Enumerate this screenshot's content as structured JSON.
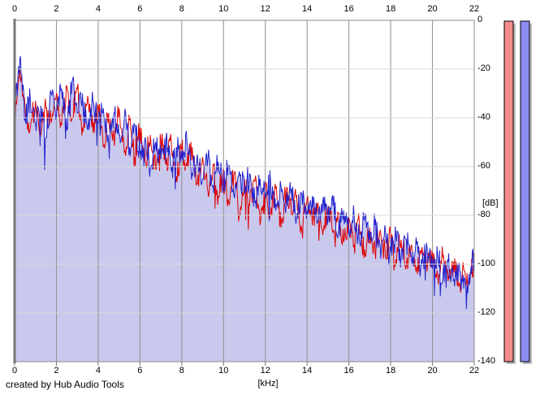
{
  "footer": {
    "credit": "created by Hub Audio Tools"
  },
  "axes": {
    "x_label": "[kHz]",
    "y_label": "[dB]",
    "x_ticks": [
      0,
      2,
      4,
      6,
      8,
      10,
      12,
      14,
      16,
      18,
      20,
      22
    ],
    "y_ticks": [
      0,
      -20,
      -40,
      -60,
      -80,
      -100,
      -120,
      -140
    ]
  },
  "chart_data": {
    "type": "line",
    "title": "",
    "xlabel": "[kHz]",
    "ylabel": "[dB]",
    "xlim": [
      0,
      22
    ],
    "ylim": [
      -140,
      0
    ],
    "grid": true,
    "legend": "none",
    "x_start_khz": 0,
    "x_step_khz": 0.25,
    "series": [
      {
        "name": "spectrum-red",
        "color": "#dd0000",
        "style": "line",
        "values_db": [
          -42,
          -20,
          -36,
          -44,
          -33,
          -47,
          -36,
          -42,
          -30,
          -43,
          -27,
          -40,
          -28,
          -44,
          -31,
          -46,
          -35,
          -52,
          -38,
          -48,
          -36,
          -54,
          -41,
          -56,
          -44,
          -58,
          -47,
          -61,
          -49,
          -59,
          -50,
          -64,
          -53,
          -60,
          -52,
          -67,
          -56,
          -70,
          -59,
          -72,
          -61,
          -75,
          -63,
          -80,
          -65,
          -76,
          -66,
          -84,
          -68,
          -79,
          -69,
          -85,
          -70,
          -80,
          -72,
          -86,
          -73,
          -84,
          -75,
          -88,
          -77,
          -87,
          -79,
          -91,
          -81,
          -92,
          -83,
          -94,
          -85,
          -95,
          -86,
          -97,
          -88,
          -98,
          -90,
          -100,
          -92,
          -101,
          -93,
          -103,
          -95,
          -105,
          -97,
          -107,
          -99,
          -109,
          -102,
          -106,
          -99
        ]
      },
      {
        "name": "spectrum-blue",
        "color": "#2222cc",
        "style": "line",
        "fill_under": true,
        "fill_color": "#c9c9ee",
        "values_db": [
          -38,
          -16,
          -40,
          -32,
          -42,
          -35,
          -48,
          -30,
          -40,
          -28,
          -45,
          -25,
          -38,
          -30,
          -45,
          -33,
          -42,
          -36,
          -50,
          -38,
          -47,
          -40,
          -52,
          -43,
          -55,
          -48,
          -60,
          -50,
          -57,
          -48,
          -62,
          -52,
          -57,
          -50,
          -63,
          -55,
          -65,
          -57,
          -68,
          -58,
          -67,
          -60,
          -72,
          -62,
          -70,
          -63,
          -75,
          -65,
          -73,
          -66,
          -78,
          -68,
          -75,
          -69,
          -80,
          -71,
          -78,
          -72,
          -83,
          -74,
          -82,
          -76,
          -86,
          -78,
          -87,
          -80,
          -90,
          -82,
          -90,
          -84,
          -93,
          -86,
          -95,
          -88,
          -97,
          -90,
          -98,
          -92,
          -100,
          -94,
          -102,
          -96,
          -105,
          -99,
          -107,
          -101,
          -110,
          -104,
          -97
        ]
      }
    ]
  },
  "meters": {
    "bars": [
      {
        "name": "left-level-meter",
        "color": "#f28c8c"
      },
      {
        "name": "right-level-meter",
        "color": "#8c8cf2"
      }
    ],
    "shadow_color": "#bdbdbd",
    "outline_color": "#000000"
  },
  "colors": {
    "background": "#ffffff",
    "plot_background": "#ffffff",
    "fill": "#c9c9ee",
    "grid_vertical": "#8f8f8f",
    "grid_horizontal": "#d8d8d8",
    "border": "#8c8c8c",
    "axis_line": "#787878",
    "axis_text": "#000000",
    "trace_red": "#dd0000",
    "trace_blue": "#2222cc"
  },
  "noise": {
    "subdivisions": 8,
    "amplitude_db": 5.5,
    "spike_chance": 0.06,
    "spike_extra_db": 13,
    "seed_red": 1337,
    "seed_blue": 907
  }
}
